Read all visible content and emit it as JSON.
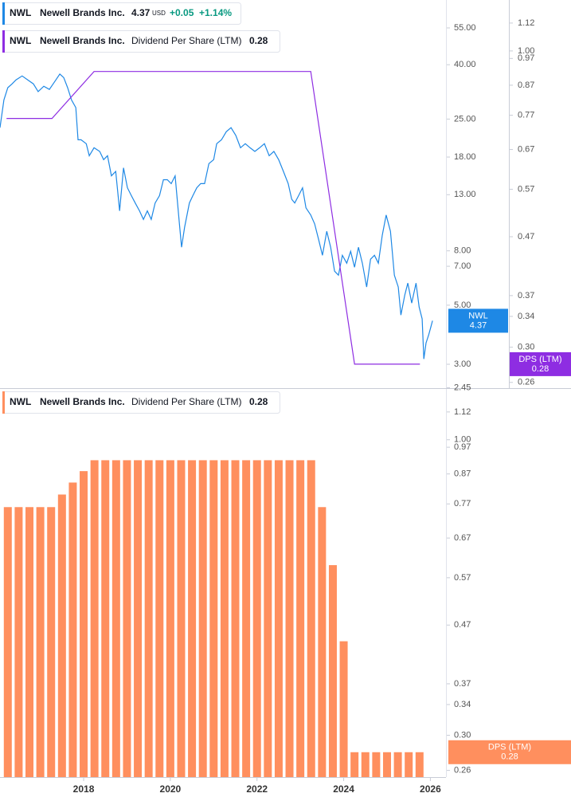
{
  "chart_data": [
    {
      "type": "line",
      "log_scale": true,
      "xlim": [
        2016.07,
        2026.36
      ],
      "ylim": [
        2.44,
        70
      ],
      "yticks": [
        2.45,
        {
          "value": 3,
          "label": "3.00"
        },
        {
          "value": 5,
          "label": "5.00"
        },
        {
          "value": 7,
          "label": "7.00"
        },
        {
          "value": 8,
          "label": "8.00"
        },
        {
          "value": 13,
          "label": "13.00"
        },
        {
          "value": 18,
          "label": "18.00"
        },
        {
          "value": 25,
          "label": "25.00"
        },
        {
          "value": 40,
          "label": "40.00"
        },
        {
          "value": 55,
          "label": "55.00"
        }
      ],
      "y2lim": [
        0.254,
        1.23
      ],
      "y2ticks": [
        0.26,
        {
          "value": 0.3,
          "label": "0.30"
        },
        0.34,
        0.37,
        0.47,
        0.57,
        0.67,
        0.77,
        0.87,
        0.97,
        {
          "value": 1,
          "label": "1.00"
        },
        1.12
      ],
      "series": [
        {
          "ticker": "NWL",
          "name": "Newell Brands Inc.",
          "last": 4.37,
          "currency": "USD",
          "change": "+0.05",
          "change_pct": "+1.14%",
          "color": "#1e88e5",
          "x": [
            2016.07,
            2016.16,
            2016.25,
            2016.35,
            2016.44,
            2016.58,
            2016.71,
            2016.84,
            2016.95,
            2017.08,
            2017.21,
            2017.36,
            2017.45,
            2017.54,
            2017.63,
            2017.72,
            2017.82,
            2017.87,
            2017.94,
            2018.06,
            2018.13,
            2018.24,
            2018.37,
            2018.46,
            2018.55,
            2018.64,
            2018.74,
            2018.83,
            2018.92,
            2019.01,
            2019.1,
            2019.19,
            2019.29,
            2019.38,
            2019.47,
            2019.56,
            2019.65,
            2019.75,
            2019.84,
            2019.93,
            2020.02,
            2020.11,
            2020.21,
            2020.26,
            2020.33,
            2020.44,
            2020.52,
            2020.61,
            2020.7,
            2020.79,
            2020.89,
            2021.0,
            2021.07,
            2021.18,
            2021.29,
            2021.4,
            2021.51,
            2021.62,
            2021.73,
            2021.84,
            2021.95,
            2022.06,
            2022.17,
            2022.28,
            2022.39,
            2022.5,
            2022.61,
            2022.72,
            2022.8,
            2022.87,
            2022.96,
            2023.05,
            2023.13,
            2023.24,
            2023.33,
            2023.42,
            2023.51,
            2023.61,
            2023.7,
            2023.79,
            2023.88,
            2023.97,
            2024.07,
            2024.16,
            2024.25,
            2024.34,
            2024.43,
            2024.53,
            2024.62,
            2024.71,
            2024.8,
            2024.89,
            2024.98,
            2025.08,
            2025.17,
            2025.26,
            2025.32,
            2025.41,
            2025.48,
            2025.57,
            2025.67,
            2025.74,
            2025.81,
            2025.85,
            2025.9,
            2025.96,
            2026.01,
            2026.05
          ],
          "values": [
            23.2,
            29.5,
            32.8,
            33.9,
            35.1,
            36.3,
            35.1,
            33.9,
            31.7,
            33.2,
            32.3,
            35.1,
            36.9,
            35.8,
            32.8,
            29.5,
            27.6,
            20.9,
            20.9,
            20.2,
            18.2,
            19.5,
            18.9,
            17.6,
            18.2,
            15.3,
            15.9,
            11.3,
            16.4,
            13.8,
            12.9,
            12.1,
            11.3,
            10.5,
            11.3,
            10.5,
            12.1,
            12.9,
            14.8,
            14.8,
            14.3,
            15.3,
            10.1,
            8.25,
            9.81,
            12.1,
            12.9,
            13.8,
            14.3,
            14.3,
            17.0,
            17.6,
            20.2,
            20.9,
            22.4,
            23.2,
            21.7,
            19.5,
            20.2,
            19.5,
            18.9,
            19.5,
            20.2,
            18.2,
            18.9,
            17.6,
            15.9,
            14.3,
            12.5,
            12.1,
            12.9,
            13.8,
            11.6,
            10.9,
            10.1,
            8.84,
            7.7,
            9.47,
            8.25,
            6.71,
            6.48,
            7.7,
            7.19,
            7.97,
            6.94,
            8.25,
            7.19,
            5.85,
            7.44,
            7.7,
            7.19,
            9.15,
            10.9,
            9.47,
            6.48,
            5.85,
            4.59,
            5.46,
            6.05,
            5.09,
            6.05,
            4.92,
            4.44,
            3.14,
            3.61,
            3.86,
            4.14,
            4.37
          ]
        },
        {
          "ticker": "NWL",
          "company": "Newell Brands Inc.",
          "name": "Dividend Per Share (LTM)",
          "last": 0.28,
          "badge_label": "DPS (LTM)",
          "color": "#8e2de2",
          "axis": "y2",
          "x": [
            2016.22,
            2017.27,
            2018.24,
            2023.24,
            2024.25,
            2025.76
          ],
          "values": [
            0.76,
            0.76,
            0.92,
            0.92,
            0.28,
            0.28
          ]
        }
      ]
    },
    {
      "type": "bar",
      "log_scale": true,
      "xlim": [
        2016.07,
        2026.36
      ],
      "xticks": [
        2018,
        2020,
        2022,
        2024,
        2026
      ],
      "ylim": [
        0.253,
        1.23
      ],
      "yticks": [
        0.26,
        {
          "value": 0.3,
          "label": "0.30"
        },
        0.34,
        0.37,
        0.47,
        0.57,
        0.67,
        0.77,
        0.87,
        0.97,
        {
          "value": 1,
          "label": "1.00"
        },
        1.12
      ],
      "series": [
        {
          "ticker": "NWL",
          "company": "Newell Brands Inc.",
          "name": "Dividend Per Share (LTM)",
          "last": 0.28,
          "badge_label": "DPS (LTM)",
          "color": "#ff8f5e",
          "x": [
            2016.25,
            2016.5,
            2016.75,
            2017,
            2017.25,
            2017.5,
            2017.75,
            2018,
            2018.25,
            2018.5,
            2018.75,
            2019,
            2019.25,
            2019.5,
            2019.75,
            2020,
            2020.25,
            2020.5,
            2020.75,
            2021,
            2021.25,
            2021.5,
            2021.75,
            2022,
            2022.25,
            2022.5,
            2022.75,
            2023,
            2023.25,
            2023.5,
            2023.75,
            2024,
            2024.25,
            2024.5,
            2024.75,
            2025,
            2025.25,
            2025.5,
            2025.75
          ],
          "values": [
            0.76,
            0.76,
            0.76,
            0.76,
            0.76,
            0.8,
            0.84,
            0.88,
            0.92,
            0.92,
            0.92,
            0.92,
            0.92,
            0.92,
            0.92,
            0.92,
            0.92,
            0.92,
            0.92,
            0.92,
            0.92,
            0.92,
            0.92,
            0.92,
            0.92,
            0.92,
            0.92,
            0.92,
            0.92,
            0.76,
            0.6,
            0.44,
            0.28,
            0.28,
            0.28,
            0.28,
            0.28,
            0.28,
            0.28
          ]
        }
      ]
    }
  ]
}
